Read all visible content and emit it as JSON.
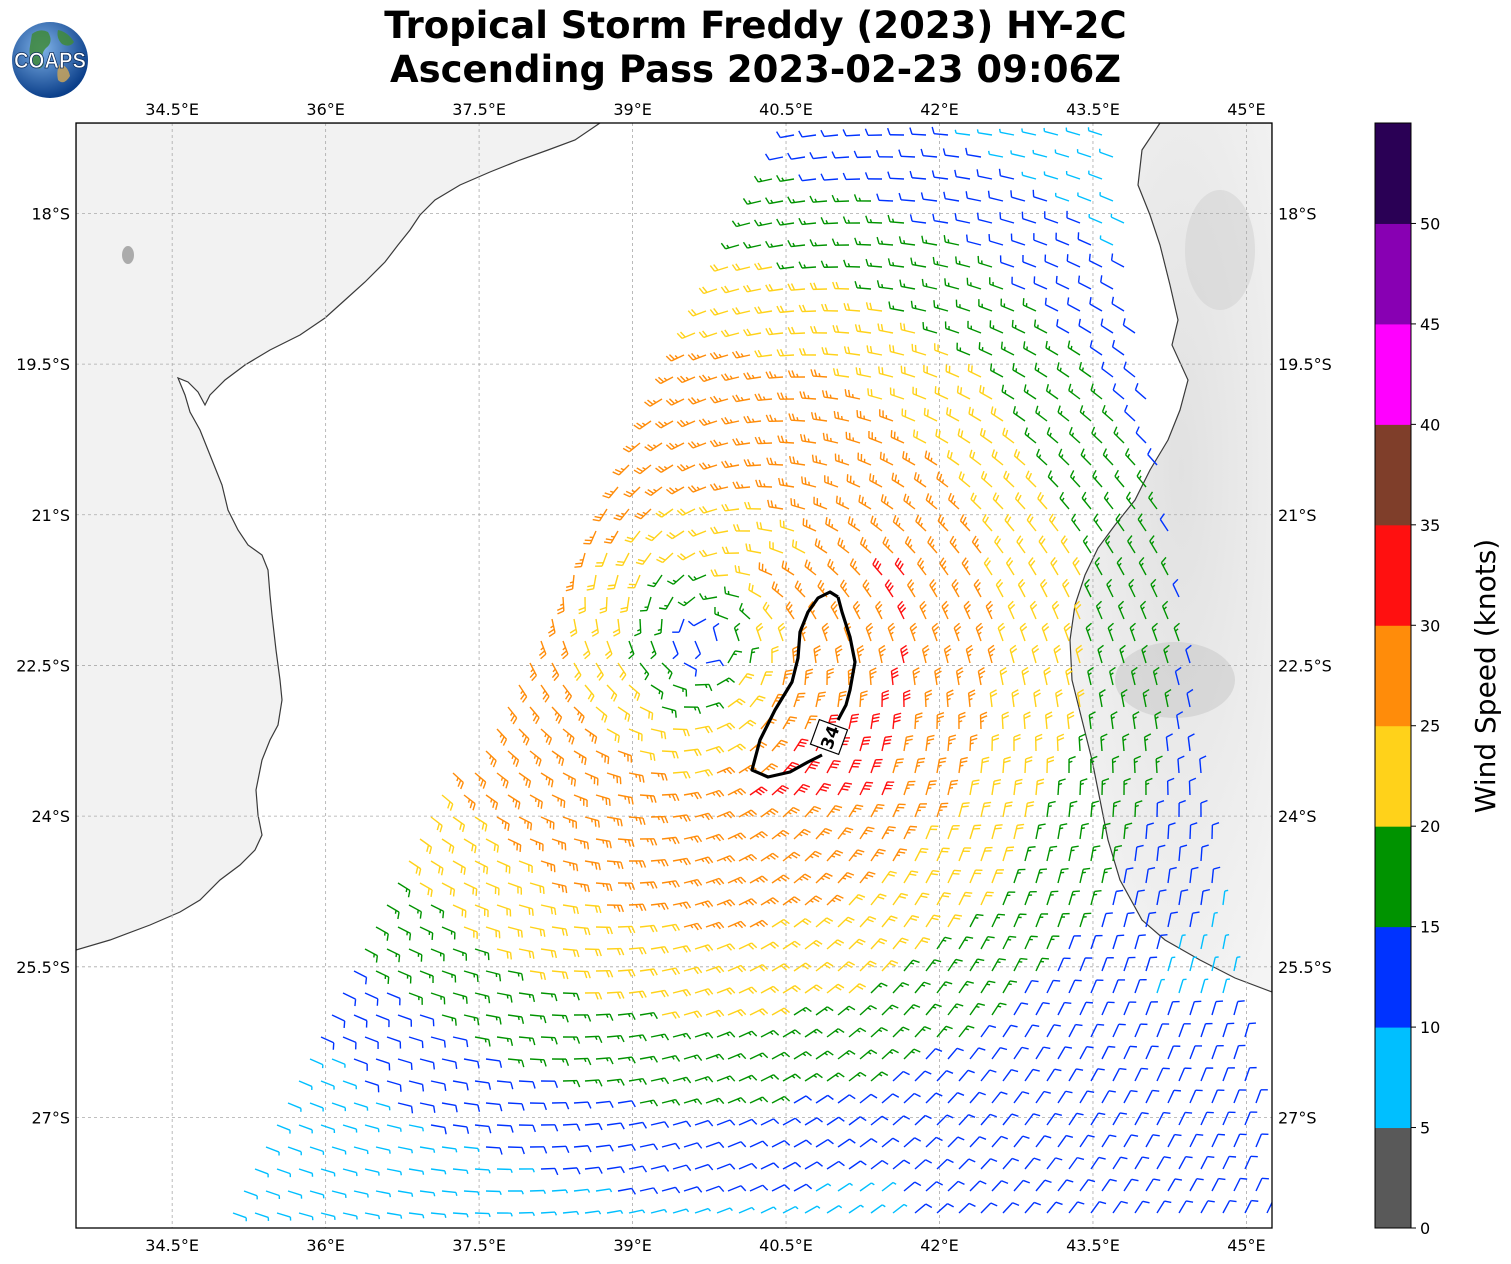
{
  "title": {
    "line1": "Tropical Storm Freddy (2023) HY-2C",
    "line2": "Ascending Pass 2023-02-23 09:06Z"
  },
  "logo": {
    "text": "COAPS",
    "icon": "globe-icon"
  },
  "axes": {
    "lon_ticks": [
      "34.5°E",
      "36°E",
      "37.5°E",
      "39°E",
      "40.5°E",
      "42°E",
      "43.5°E",
      "45°E"
    ],
    "lon_values": [
      34.5,
      36,
      37.5,
      39,
      40.5,
      42,
      43.5,
      45
    ],
    "lat_ticks": [
      "18°S",
      "19.5°S",
      "21°S",
      "22.5°S",
      "24°S",
      "25.5°S",
      "27°S"
    ],
    "lat_values": [
      -18,
      -19.5,
      -21,
      -22.5,
      -24,
      -25.5,
      -27
    ],
    "lon_range": [
      33.56,
      45.25
    ],
    "lat_range": [
      -28.1,
      -17.1
    ],
    "grid": "dashed"
  },
  "colorbar": {
    "label": "Wind Speed (knots)",
    "ticks": [
      "0",
      "5",
      "10",
      "15",
      "20",
      "25",
      "30",
      "35",
      "40",
      "45",
      "50"
    ],
    "bins": [
      {
        "min": 0,
        "max": 5,
        "color": "#595959"
      },
      {
        "min": 5,
        "max": 10,
        "color": "#00bfff"
      },
      {
        "min": 10,
        "max": 15,
        "color": "#0033ff"
      },
      {
        "min": 15,
        "max": 20,
        "color": "#009300"
      },
      {
        "min": 20,
        "max": 25,
        "color": "#ffd21a"
      },
      {
        "min": 25,
        "max": 30,
        "color": "#ff8c0a"
      },
      {
        "min": 30,
        "max": 35,
        "color": "#ff1010"
      },
      {
        "min": 35,
        "max": 40,
        "color": "#7f3e2a"
      },
      {
        "min": 40,
        "max": 45,
        "color": "#ff00ff"
      },
      {
        "min": 45,
        "max": 50,
        "color": "#8800b3"
      },
      {
        "min": 50,
        "max": 55,
        "color": "#2a0055"
      }
    ]
  },
  "contour": {
    "label": "34"
  },
  "storm": {
    "center_lon": 39.75,
    "center_lat": -22.25
  },
  "colors": {
    "land": "#eeeeee",
    "coast": "#333333",
    "grid": "#aaaaaa"
  }
}
